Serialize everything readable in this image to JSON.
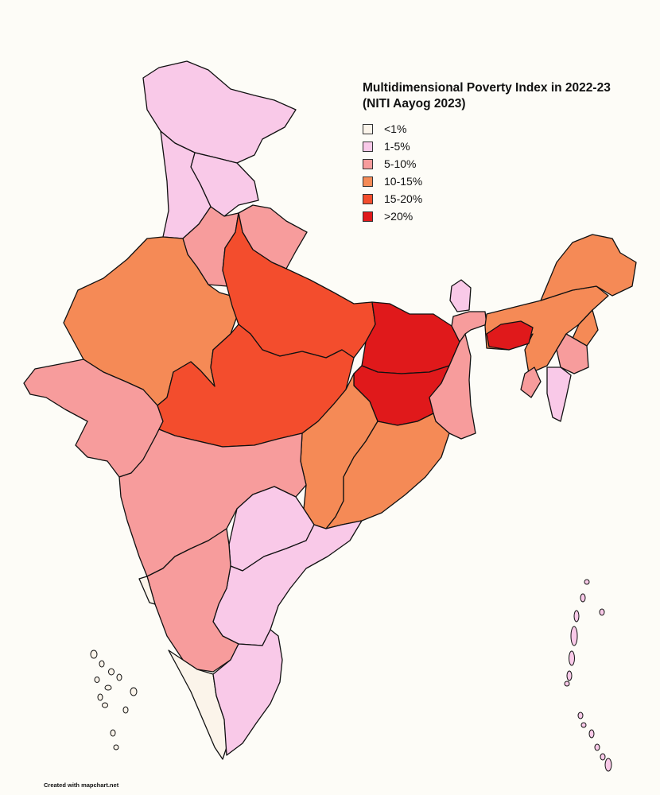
{
  "legend": {
    "title_line1": "Multidimensional Poverty Index in 2022-23",
    "title_line2": "(NITI Aayog 2023)",
    "items": [
      {
        "label": "<1%",
        "color": "#fbf4ea"
      },
      {
        "label": "1-5%",
        "color": "#f9c9e8"
      },
      {
        "label": "5-10%",
        "color": "#f79c9c"
      },
      {
        "label": "10-15%",
        "color": "#f58a56"
      },
      {
        "label": "15-20%",
        "color": "#f34d2d"
      },
      {
        "label": ">20%",
        "color": "#e0191b"
      }
    ]
  },
  "credit": "Created with mapchart.net",
  "map": {
    "regions": [
      {
        "id": "jammu-kashmir-ladakh",
        "category": "1-5%"
      },
      {
        "id": "himachal-pradesh",
        "category": "1-5%"
      },
      {
        "id": "punjab",
        "category": "1-5%"
      },
      {
        "id": "haryana",
        "category": "5-10%"
      },
      {
        "id": "uttarakhand",
        "category": "5-10%"
      },
      {
        "id": "rajasthan",
        "category": "10-15%"
      },
      {
        "id": "uttar-pradesh",
        "category": "15-20%"
      },
      {
        "id": "madhya-pradesh",
        "category": "15-20%"
      },
      {
        "id": "bihar",
        "category": ">20%"
      },
      {
        "id": "jharkhand",
        "category": ">20%"
      },
      {
        "id": "gujarat",
        "category": "5-10%"
      },
      {
        "id": "maharashtra",
        "category": "5-10%"
      },
      {
        "id": "chhattisgarh",
        "category": "10-15%"
      },
      {
        "id": "odisha",
        "category": "10-15%"
      },
      {
        "id": "west-bengal",
        "category": "5-10%"
      },
      {
        "id": "telangana",
        "category": "1-5%"
      },
      {
        "id": "andhra-pradesh",
        "category": "1-5%"
      },
      {
        "id": "karnataka",
        "category": "5-10%"
      },
      {
        "id": "goa",
        "category": "<1%"
      },
      {
        "id": "kerala",
        "category": "<1%"
      },
      {
        "id": "tamil-nadu",
        "category": "1-5%"
      },
      {
        "id": "sikkim",
        "category": "1-5%"
      },
      {
        "id": "assam",
        "category": "10-15%"
      },
      {
        "id": "arunachal-pradesh",
        "category": "10-15%"
      },
      {
        "id": "meghalaya",
        "category": ">20%"
      },
      {
        "id": "manipur",
        "category": "5-10%"
      },
      {
        "id": "mizoram",
        "category": "1-5%"
      },
      {
        "id": "tripura",
        "category": "5-10%"
      },
      {
        "id": "nagaland",
        "category": "10-15%"
      },
      {
        "id": "lakshadweep",
        "category": "<1%"
      },
      {
        "id": "andaman-nicobar",
        "category": "1-5%"
      }
    ]
  }
}
